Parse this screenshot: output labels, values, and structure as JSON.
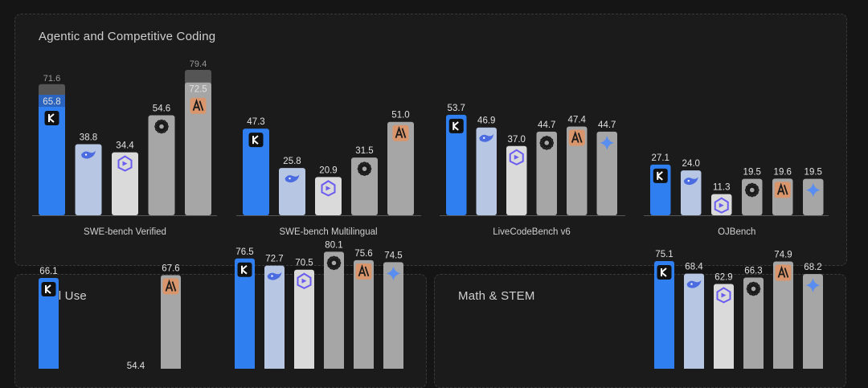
{
  "panels": {
    "agentic_title": "Agentic and Competitive Coding",
    "tool_title": "Tool Use",
    "math_title": "Math & STEM"
  },
  "colors": {
    "kimi": "#2f7ff0",
    "deepseek": "#b6c6e3",
    "qwen": "#dadada",
    "openai": "#a6a6a6",
    "anthropic": "#a6a6a6",
    "gemini": "#a6a6a6",
    "ghost": "#7d7d7d",
    "value_text": "#e0e0e0",
    "ghost_text": "#9a9a9a"
  },
  "icons": {
    "kimi": "kimi-k-icon",
    "deepseek": "deepseek-whale-icon",
    "qwen": "qwen-logo-icon",
    "openai": "openai-logo-icon",
    "anthropic": "anthropic-logo-icon",
    "gemini": "gemini-star-icon"
  },
  "chart_data": [
    {
      "type": "bar",
      "category": "SWE-bench Verified",
      "series": [
        "kimi",
        "deepseek",
        "qwen",
        "openai",
        "anthropic"
      ],
      "values": [
        65.8,
        38.8,
        34.4,
        54.6,
        72.5
      ],
      "secondary_values": [
        71.6,
        null,
        null,
        null,
        79.4
      ]
    },
    {
      "type": "bar",
      "category": "SWE-bench Multilingual",
      "series": [
        "kimi",
        "deepseek",
        "qwen",
        "openai",
        "anthropic"
      ],
      "values": [
        47.3,
        25.8,
        20.9,
        31.5,
        51.0
      ]
    },
    {
      "type": "bar",
      "category": "LiveCodeBench v6",
      "series": [
        "kimi",
        "deepseek",
        "qwen",
        "openai",
        "anthropic",
        "gemini"
      ],
      "values": [
        53.7,
        46.9,
        37.0,
        44.7,
        47.4,
        44.7
      ]
    },
    {
      "type": "bar",
      "category": "OJBench",
      "series": [
        "kimi",
        "deepseek",
        "qwen",
        "openai",
        "anthropic",
        "gemini"
      ],
      "values": [
        27.1,
        24.0,
        11.3,
        19.5,
        19.6,
        19.5
      ]
    },
    {
      "type": "bar",
      "category": "",
      "series": [
        "kimi",
        "anthropic"
      ],
      "values": [
        66.1,
        67.6
      ],
      "annotations": [
        "54.4"
      ]
    },
    {
      "type": "bar",
      "category": "",
      "series": [
        "kimi",
        "deepseek",
        "qwen",
        "openai",
        "anthropic",
        "gemini"
      ],
      "values": [
        76.5,
        72.7,
        70.5,
        80.1,
        75.6,
        74.5
      ]
    },
    {
      "type": "bar",
      "category": "",
      "series": [
        "kimi",
        "deepseek",
        "qwen",
        "openai",
        "anthropic",
        "gemini"
      ],
      "values": [
        75.1,
        68.4,
        62.9,
        66.3,
        74.9,
        68.2
      ]
    }
  ]
}
